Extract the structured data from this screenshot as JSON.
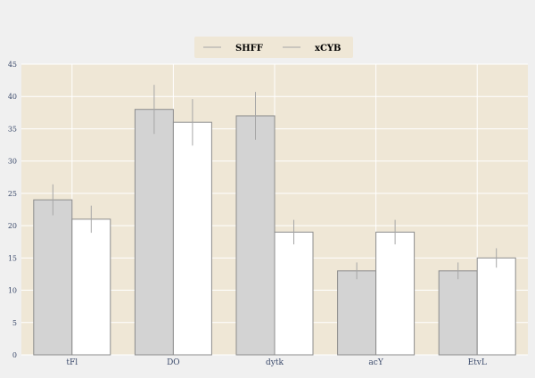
{
  "chart_data": {
    "type": "bar",
    "title": "",
    "xlabel": "",
    "ylabel": "",
    "categories": [
      "tFl",
      "DO",
      "dytk",
      "acY",
      "EtvL"
    ],
    "ylim": [
      0,
      45
    ],
    "yticks": [
      0,
      5,
      10,
      15,
      20,
      25,
      30,
      35,
      40,
      45
    ],
    "grid": true,
    "legend_position": "top-center",
    "series": [
      {
        "name": "SHFF",
        "color": "#d3d3d3",
        "values": [
          24,
          38,
          37,
          13,
          13
        ],
        "errors": [
          2.4,
          3.8,
          3.7,
          1.3,
          1.3
        ]
      },
      {
        "name": "xCYB",
        "color": "#ffffff",
        "values": [
          21,
          36,
          19,
          19,
          15
        ],
        "errors": [
          2.1,
          3.6,
          1.9,
          1.9,
          1.5
        ]
      }
    ],
    "colors": {
      "page_background": "#f0f0f0",
      "plot_background": "#efe7d6",
      "grid": "#ffffff",
      "bar_edge": "#8c8c8c",
      "error_bar": "#a6a6a6",
      "axis_text": "#3b4a6b",
      "legend_background": "#efe7d6"
    }
  }
}
